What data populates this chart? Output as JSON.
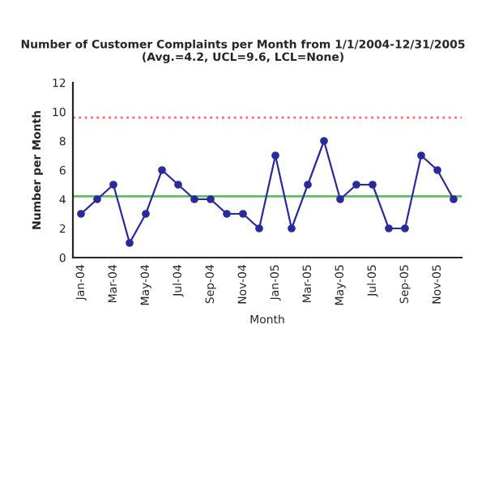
{
  "chart_data": {
    "type": "line",
    "title": "Number of Customer Complaints per Month from 1/1/2004-12/31/2005\n(Avg.=4.2, UCL=9.6, LCL=None)",
    "xlabel": "Month",
    "ylabel": "Number per Month",
    "categories": [
      "Jan-04",
      null,
      "Mar-04",
      null,
      "May-04",
      null,
      "Jul-04",
      null,
      "Sep-04",
      null,
      "Nov-04",
      null,
      "Jan-05",
      null,
      "Mar-05",
      null,
      "May-05",
      null,
      "Jul-05",
      null,
      "Sep-05",
      null,
      "Nov-05",
      null
    ],
    "series": [
      {
        "color": "#2a2a9a",
        "values": [
          3,
          4,
          5,
          1,
          3,
          6,
          5,
          4,
          4,
          3,
          3,
          2,
          7,
          2,
          5,
          8,
          4,
          5,
          5,
          2,
          2,
          7,
          6,
          4
        ]
      }
    ],
    "ylim": [
      0,
      12
    ],
    "yticks": [
      0,
      2,
      4,
      6,
      8,
      10,
      12
    ],
    "ref_lines": [
      {
        "axis": "y",
        "value": 9.6,
        "color": "#ff6666",
        "line_style": "dotted"
      },
      {
        "axis": "y",
        "value": 4.2,
        "color": "#66bb66",
        "line_style": "solid"
      }
    ],
    "marker": "circle",
    "line_style": "solid",
    "grid": false,
    "legend": false
  }
}
